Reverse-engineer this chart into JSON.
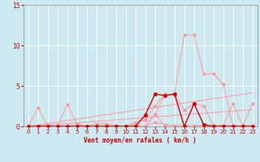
{
  "xlabel": "Vent moyen/en rafales ( km/h )",
  "xlim": [
    -0.5,
    23.5
  ],
  "ylim": [
    0,
    15
  ],
  "xticks": [
    0,
    1,
    2,
    3,
    4,
    5,
    6,
    7,
    8,
    9,
    10,
    11,
    12,
    13,
    14,
    15,
    16,
    17,
    18,
    19,
    20,
    21,
    22,
    23
  ],
  "yticks": [
    0,
    5,
    10,
    15
  ],
  "background_color": "#cce8f0",
  "grid_color": "#ffffff",
  "line_color_dark": "#dd0000",
  "line_color_light": "#ff9999",
  "x_values": [
    0,
    1,
    2,
    3,
    4,
    5,
    6,
    7,
    8,
    9,
    10,
    11,
    12,
    13,
    14,
    15,
    16,
    17,
    18,
    19,
    20,
    21,
    22,
    23
  ],
  "series_light": [
    [
      0,
      2.3,
      0,
      0,
      0,
      0.3,
      0,
      0,
      0,
      0,
      0,
      0.1,
      0,
      1.5,
      0,
      0,
      0,
      0,
      0,
      0,
      0,
      0,
      0,
      0
    ],
    [
      0,
      0,
      0,
      0,
      2.7,
      0.3,
      0,
      0.3,
      0.3,
      0.1,
      0,
      0.2,
      0,
      0.5,
      0.2,
      0.1,
      0.1,
      0.1,
      0.1,
      0.1,
      0.1,
      0.1,
      0.1,
      0.1
    ],
    [
      0,
      0,
      0,
      0,
      0,
      0,
      0,
      0,
      0,
      0,
      0,
      0.5,
      0.8,
      2.5,
      4.0,
      3.8,
      2.0,
      2.8,
      2.5,
      0.1,
      0.1,
      2.8,
      0.1,
      2.8
    ],
    [
      0,
      0,
      0,
      0,
      0,
      0,
      0,
      0,
      0,
      0,
      0,
      0,
      0,
      1.5,
      3.8,
      4.0,
      11.3,
      11.3,
      6.5,
      6.5,
      5.2,
      0,
      0,
      0
    ]
  ],
  "trend_lines": [
    [
      0.0,
      0.18,
      0.36,
      0.54,
      0.72,
      0.9,
      1.08,
      1.26,
      1.44,
      1.62,
      1.8,
      1.98,
      2.16,
      2.34,
      2.52,
      2.7,
      2.88,
      3.06,
      3.24,
      3.42,
      3.6,
      3.78,
      3.96,
      4.14
    ],
    [
      0.0,
      0.09,
      0.18,
      0.27,
      0.36,
      0.45,
      0.54,
      0.63,
      0.72,
      0.81,
      0.9,
      0.99,
      1.08,
      1.17,
      1.26,
      1.35,
      1.44,
      1.53,
      1.62,
      1.71,
      1.8,
      1.89,
      1.98,
      2.07
    ]
  ],
  "series_dark": [
    0,
    0,
    0,
    0,
    0,
    0,
    0,
    0,
    0,
    0,
    0,
    0,
    1.4,
    4.0,
    3.8,
    4.0,
    0,
    2.8,
    0.2,
    0,
    0,
    0,
    0,
    0
  ]
}
